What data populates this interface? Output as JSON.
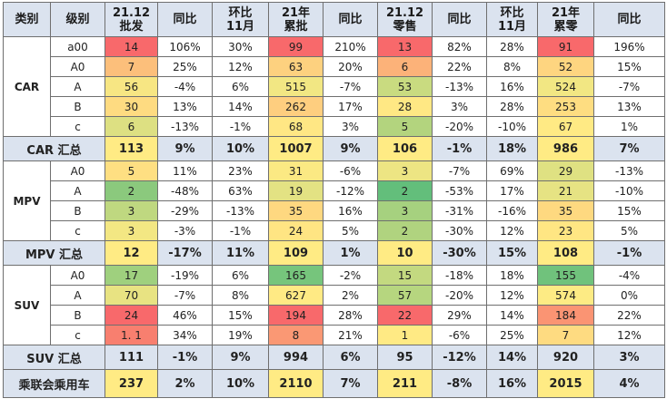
{
  "headers": [
    "类别",
    "级别",
    "21.12\n批发",
    "同比",
    "环比\n11月",
    "21年\n累批",
    "同比",
    "21.12\n零售",
    "同比",
    "环比\n11月",
    "21年\n累零",
    "同比"
  ],
  "groups": [
    {
      "category": "CAR",
      "rows": [
        [
          "a00",
          "14",
          "106%",
          "30%",
          "99",
          "210%",
          "13",
          "82%",
          "28%",
          "91",
          "196%"
        ],
        [
          "A0",
          "7",
          "25%",
          "12%",
          "63",
          "20%",
          "6",
          "22%",
          "8%",
          "52",
          "15%"
        ],
        [
          "A",
          "56",
          "-4%",
          "6%",
          "515",
          "-7%",
          "53",
          "-13%",
          "16%",
          "524",
          "-7%"
        ],
        [
          "B",
          "30",
          "13%",
          "14%",
          "262",
          "17%",
          "28",
          "3%",
          "28%",
          "253",
          "13%"
        ],
        [
          "c",
          "6",
          "-13%",
          "-1%",
          "68",
          "3%",
          "5",
          "-20%",
          "-10%",
          "67",
          "1%"
        ]
      ],
      "total": [
        "CAR 汇总",
        "113",
        "9%",
        "10%",
        "1007",
        "9%",
        "106",
        "-1%",
        "18%",
        "986",
        "7%"
      ]
    },
    {
      "category": "MPV",
      "rows": [
        [
          "A0",
          "5",
          "11%",
          "23%",
          "31",
          "-6%",
          "3",
          "-7%",
          "69%",
          "29",
          "-13%"
        ],
        [
          "A",
          "2",
          "-48%",
          "63%",
          "19",
          "-12%",
          "2",
          "-53%",
          "17%",
          "21",
          "-10%"
        ],
        [
          "B",
          "3",
          "-29%",
          "-13%",
          "35",
          "16%",
          "3",
          "-31%",
          "-16%",
          "35",
          "15%"
        ],
        [
          "c",
          "3",
          "-3%",
          "-1%",
          "24",
          "5%",
          "2",
          "-30%",
          "12%",
          "23",
          "5%"
        ]
      ],
      "total": [
        "MPV 汇总",
        "12",
        "-17%",
        "11%",
        "109",
        "1%",
        "10",
        "-30%",
        "15%",
        "108",
        "-1%"
      ]
    },
    {
      "category": "SUV",
      "rows": [
        [
          "A0",
          "17",
          "-19%",
          "6%",
          "165",
          "-2%",
          "15",
          "-18%",
          "18%",
          "155",
          "-4%"
        ],
        [
          "A",
          "70",
          "-7%",
          "8%",
          "627",
          "2%",
          "57",
          "-20%",
          "12%",
          "574",
          "0%"
        ],
        [
          "B",
          "24",
          "46%",
          "15%",
          "194",
          "28%",
          "22",
          "29%",
          "14%",
          "184",
          "22%"
        ],
        [
          "c",
          "1. 1",
          "34%",
          "19%",
          "8",
          "21%",
          "1",
          "-6%",
          "25%",
          "7",
          "12%"
        ]
      ],
      "total": [
        "SUV 汇总",
        "111",
        "-1%",
        "9%",
        "994",
        "6%",
        "95",
        "-12%",
        "14%",
        "920",
        "3%"
      ]
    }
  ],
  "grand_total": [
    "乘联会乘用车",
    "237",
    "2%",
    "10%",
    "2110",
    "7%",
    "211",
    "-8%",
    "16%",
    "2015",
    "4%"
  ],
  "cell_fills": {
    "CAR": [
      {
        "c3": "#f8696b",
        "c4": "#ffffff",
        "c6": "#f8696b",
        "c8": "#f8696b",
        "c11": "#f8696b"
      },
      {
        "c3": "#fcbf7b",
        "c4": "#ffffff",
        "c6": "#fdd17f",
        "c8": "#fcb279",
        "c11": "#fed580"
      },
      {
        "c3": "#f7e683",
        "c4": "#ffffff",
        "c6": "#f2e783",
        "c8": "#c9db80",
        "c11": "#f2e783"
      },
      {
        "c3": "#fedb81",
        "c4": "#ffffff",
        "c6": "#fece7f",
        "c8": "#ffe884",
        "c11": "#fedd81"
      },
      {
        "c3": "#dde082",
        "c4": "#ffffff",
        "c6": "#ffe784",
        "c8": "#b3d47e",
        "c11": "#ffea84"
      }
    ],
    "MPV": [
      {
        "c3": "#fedf82",
        "c4": "#ffffff",
        "c6": "#fbe983",
        "c8": "#ede583",
        "c11": "#dfe182"
      },
      {
        "c3": "#8bc97d",
        "c4": "#ffffff",
        "c6": "#e3e283",
        "c8": "#63be7b",
        "c11": "#e6e383"
      },
      {
        "c3": "#bfd880",
        "c4": "#ffffff",
        "c6": "#fed880",
        "c8": "#a6d17f",
        "c11": "#fed980"
      },
      {
        "c3": "#f3e783",
        "c4": "#ffffff",
        "c6": "#ffe583",
        "c8": "#b0d37f",
        "c11": "#ffe683"
      }
    ],
    "SUV": [
      {
        "c3": "#9fd07e",
        "c4": "#ffffff",
        "c6": "#76c57c",
        "c8": "#c3d980",
        "c11": "#70c27c"
      },
      {
        "c3": "#e8e382",
        "c4": "#ffffff",
        "c6": "#ffea84",
        "c8": "#b6d67f",
        "c11": "#fdeb84"
      },
      {
        "c3": "#f8696b",
        "c4": "#ffffff",
        "c6": "#f8696b",
        "c8": "#f8696b",
        "c11": "#fa9473"
      },
      {
        "c3": "#f87f6f",
        "c4": "#ffffff",
        "c6": "#fa9874",
        "c8": "#ffea84",
        "c11": "#fedb81"
      }
    ]
  },
  "total_fills": {
    "CAR": {
      "c3": "#ffeb84",
      "c6": "#ffeb84",
      "c8": "#ffeb84",
      "c11": "#ffeb84"
    },
    "MPV": {
      "c3": "#ffeb84",
      "c6": "#ffeb84",
      "c8": "#ffeb84",
      "c11": "#ffeb84"
    },
    "SUV": {
      "c3": "#dbe3ef",
      "c6": "#dbe3ef",
      "c8": "#dbe3ef",
      "c11": "#dbe3ef"
    }
  },
  "grand_fills": {
    "c3": "#ffeb84",
    "c6": "#ffeb84",
    "c8": "#ffeb84",
    "c11": "#ffeb84"
  },
  "red_text": {
    "CAR": [
      {
        "c3": true,
        "c4": true,
        "c6": true,
        "c8": true,
        "c9": true,
        "c11": true
      },
      {
        "c4": true
      },
      {
        "c9": true
      },
      {
        "c4": true,
        "c9": true
      },
      {}
    ],
    "MPV": [
      {
        "c4": true,
        "c9": true
      },
      {
        "c4": true,
        "c9": true
      },
      {},
      {}
    ],
    "SUV": [
      {
        "c9": true
      },
      {},
      {
        "c3": true,
        "c4": true,
        "c6": true,
        "c8": true,
        "c11": true
      },
      {
        "c3": true,
        "c4": true,
        "c6": true,
        "c9": true
      }
    ]
  },
  "total_red": {
    "CAR": {
      "c4": true,
      "c9": true
    },
    "MPV": {
      "c4": true
    },
    "SUV": {}
  },
  "grand_red": {
    "c2": true,
    "c7": true
  }
}
